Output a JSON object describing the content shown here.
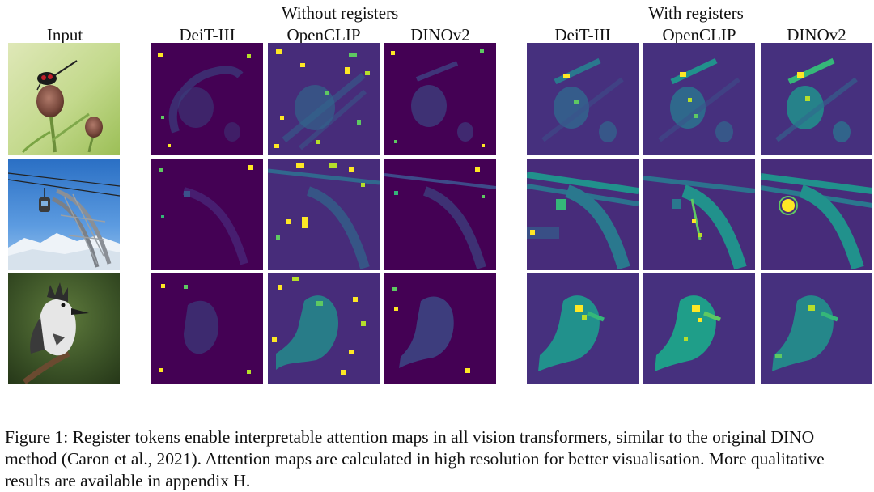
{
  "figure": {
    "input_label": "Input",
    "groups": [
      {
        "title": "Without registers",
        "columns": [
          "DeiT-III",
          "OpenCLIP",
          "DINOv2"
        ]
      },
      {
        "title": "With registers",
        "columns": [
          "DeiT-III",
          "OpenCLIP",
          "DINOv2"
        ]
      }
    ],
    "rows": [
      {
        "subject": "bird-on-flower"
      },
      {
        "subject": "cable-car-pylon"
      },
      {
        "subject": "kingfisher"
      }
    ],
    "colors": {
      "map_background": "#440154",
      "map_mid": "#21918c",
      "map_high": "#5ec962",
      "map_peak": "#fde725"
    }
  },
  "caption": {
    "text": "Figure 1: Register tokens enable  interpretable attention maps in all vision transformers, similar to the original DINO method (Caron et al., 2021). Attention maps are calculated in high resolution for better visualisation. More qualitative results are available in appendix H."
  }
}
